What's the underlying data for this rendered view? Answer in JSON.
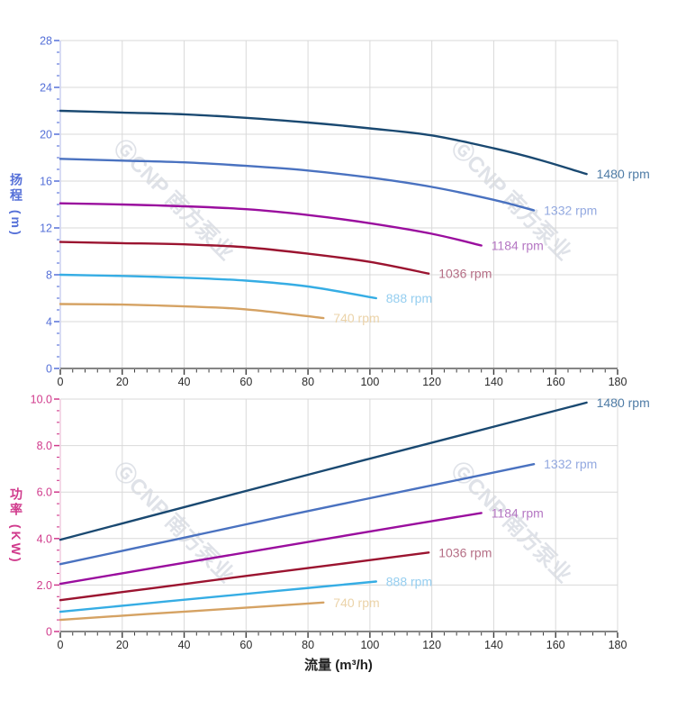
{
  "watermark": {
    "text": "ⒼCNP 南方泵业",
    "color": "rgba(150,160,180,0.30)"
  },
  "colors": {
    "background": "#ffffff",
    "grid": "#d9d9d9",
    "x_axis_line": "#3c3c3c",
    "x_tick": "#3c3c3c",
    "x_tick_label": "#2b2b2b",
    "head_axis": "#5570d8",
    "head_axis_line": "#c3c9ef",
    "power_axis": "#d03a8c",
    "power_axis_line": "#eec3da"
  },
  "x_axis": {
    "title": "流量 (m³/h)",
    "min": 0,
    "max": 180,
    "major_step": 20,
    "minor_step": 4,
    "tick_labels": [
      "0",
      "20",
      "40",
      "60",
      "80",
      "100",
      "120",
      "140",
      "160",
      "180"
    ]
  },
  "chart_data": [
    {
      "type": "line",
      "id": "head",
      "ylabel": "扬程 (m)",
      "xlabel": "流量 (m³/h)",
      "xlim": [
        0,
        180
      ],
      "ylim": [
        0,
        28
      ],
      "y_major_step": 4,
      "y_minor_step": 1,
      "y_tick_labels": [
        "0",
        "4",
        "8",
        "12",
        "16",
        "20",
        "24",
        "28"
      ],
      "grid": true,
      "legend_position": "end-of-line",
      "series": [
        {
          "name": "1480 rpm",
          "color": "#1a4971",
          "label_color": "#4f7ca6",
          "points": [
            [
              0,
              22.0
            ],
            [
              20,
              21.85
            ],
            [
              40,
              21.7
            ],
            [
              60,
              21.4
            ],
            [
              80,
              21.0
            ],
            [
              100,
              20.5
            ],
            [
              120,
              19.9
            ],
            [
              140,
              18.8
            ],
            [
              155,
              17.8
            ],
            [
              170,
              16.6
            ]
          ]
        },
        {
          "name": "1332 rpm",
          "color": "#4a72c0",
          "label_color": "#93a9e0",
          "points": [
            [
              0,
              17.9
            ],
            [
              20,
              17.75
            ],
            [
              40,
              17.6
            ],
            [
              60,
              17.3
            ],
            [
              80,
              16.9
            ],
            [
              100,
              16.3
            ],
            [
              120,
              15.5
            ],
            [
              140,
              14.4
            ],
            [
              153,
              13.5
            ]
          ]
        },
        {
          "name": "1184 rpm",
          "color": "#9a0e9e",
          "label_color": "#b577c3",
          "points": [
            [
              0,
              14.1
            ],
            [
              20,
              14.0
            ],
            [
              40,
              13.85
            ],
            [
              60,
              13.6
            ],
            [
              80,
              13.1
            ],
            [
              100,
              12.4
            ],
            [
              120,
              11.5
            ],
            [
              136,
              10.5
            ]
          ]
        },
        {
          "name": "1036 rpm",
          "color": "#9b1430",
          "label_color": "#b56e85",
          "points": [
            [
              0,
              10.8
            ],
            [
              20,
              10.7
            ],
            [
              40,
              10.6
            ],
            [
              60,
              10.35
            ],
            [
              80,
              9.8
            ],
            [
              100,
              9.1
            ],
            [
              119,
              8.1
            ]
          ]
        },
        {
          "name": "888 rpm",
          "color": "#36ade4",
          "label_color": "#95cef0",
          "points": [
            [
              0,
              8.0
            ],
            [
              20,
              7.9
            ],
            [
              40,
              7.75
            ],
            [
              60,
              7.5
            ],
            [
              80,
              7.0
            ],
            [
              102,
              6.0
            ]
          ]
        },
        {
          "name": "740 rpm",
          "color": "#d5a263",
          "label_color": "#ebd3a9",
          "points": [
            [
              0,
              5.5
            ],
            [
              20,
              5.45
            ],
            [
              40,
              5.3
            ],
            [
              60,
              5.05
            ],
            [
              85,
              4.3
            ]
          ]
        }
      ]
    },
    {
      "type": "line",
      "id": "power",
      "ylabel": "功率 (KW)",
      "xlabel": "流量 (m³/h)",
      "xlim": [
        0,
        180
      ],
      "ylim": [
        0,
        10
      ],
      "y_major_step": 2,
      "y_minor_step": 0.5,
      "y_tick_labels": [
        "0",
        "2.0",
        "4.0",
        "6.0",
        "8.0",
        "10.0"
      ],
      "grid": true,
      "legend_position": "end-of-line",
      "series": [
        {
          "name": "1480 rpm",
          "color": "#1a4971",
          "label_color": "#4f7ca6",
          "points": [
            [
              0,
              3.95
            ],
            [
              42,
              5.42
            ],
            [
              85,
              6.92
            ],
            [
              128,
              8.4
            ],
            [
              170,
              9.85
            ]
          ]
        },
        {
          "name": "1332 rpm",
          "color": "#4a72c0",
          "label_color": "#93a9e0",
          "points": [
            [
              0,
              2.9
            ],
            [
              38,
              3.98
            ],
            [
              76,
              5.07
            ],
            [
              115,
              6.15
            ],
            [
              153,
              7.2
            ]
          ]
        },
        {
          "name": "1184 rpm",
          "color": "#9a0e9e",
          "label_color": "#b577c3",
          "points": [
            [
              0,
              2.05
            ],
            [
              34,
              2.82
            ],
            [
              68,
              3.58
            ],
            [
              102,
              4.35
            ],
            [
              136,
              5.1
            ]
          ]
        },
        {
          "name": "1036 rpm",
          "color": "#9b1430",
          "label_color": "#b56e85",
          "points": [
            [
              0,
              1.35
            ],
            [
              30,
              1.87
            ],
            [
              60,
              2.39
            ],
            [
              90,
              2.9
            ],
            [
              119,
              3.4
            ]
          ]
        },
        {
          "name": "888 rpm",
          "color": "#36ade4",
          "label_color": "#95cef0",
          "points": [
            [
              0,
              0.85
            ],
            [
              34,
              1.29
            ],
            [
              68,
              1.72
            ],
            [
              102,
              2.15
            ]
          ]
        },
        {
          "name": "740 rpm",
          "color": "#d5a263",
          "label_color": "#ebd3a9",
          "points": [
            [
              0,
              0.5
            ],
            [
              28,
              0.75
            ],
            [
              57,
              1.0
            ],
            [
              85,
              1.25
            ]
          ]
        }
      ]
    }
  ]
}
